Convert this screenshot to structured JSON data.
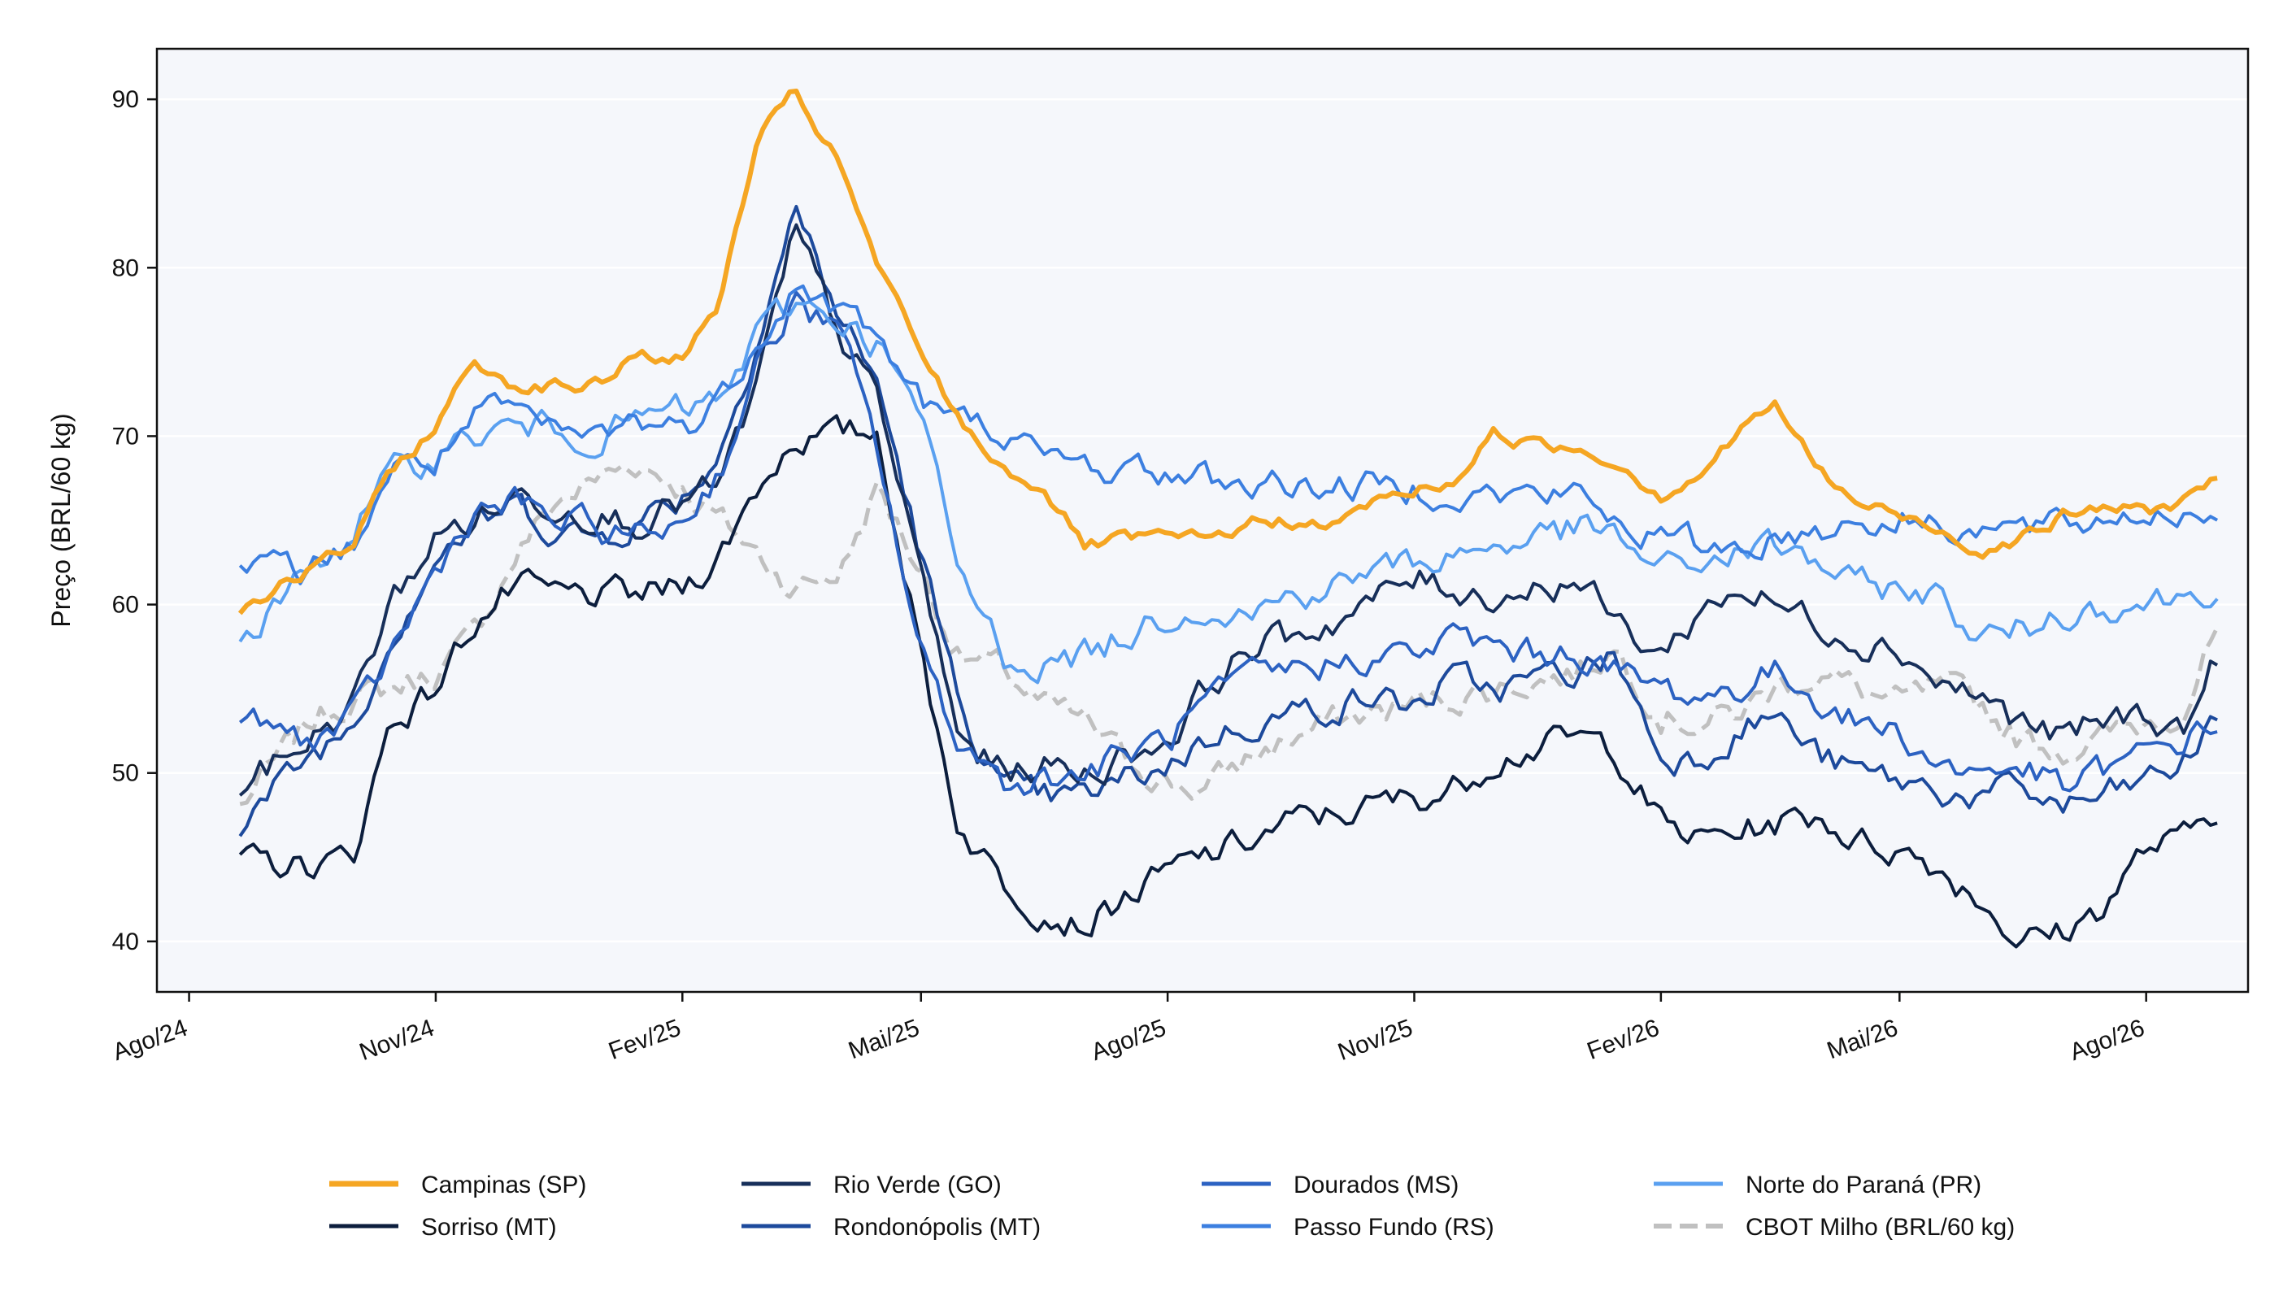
{
  "chart_data": {
    "type": "line",
    "title": "",
    "xlabel": "",
    "ylabel": "Preço (BRL/60 kg)",
    "ylim": [
      37,
      93
    ],
    "xlim": [
      "2024-07-20",
      "2026-09-08"
    ],
    "yticks": [
      40,
      50,
      60,
      70,
      80,
      90
    ],
    "xticks": [
      {
        "label": "Ago/24",
        "date": "2024-08-01"
      },
      {
        "label": "Nov/24",
        "date": "2024-11-01"
      },
      {
        "label": "Fev/25",
        "date": "2025-02-01"
      },
      {
        "label": "Mai/25",
        "date": "2025-05-01"
      },
      {
        "label": "Ago/25",
        "date": "2025-08-01"
      },
      {
        "label": "Nov/25",
        "date": "2025-11-01"
      },
      {
        "label": "Fev/26",
        "date": "2026-02-01"
      },
      {
        "label": "Mai/26",
        "date": "2026-05-01"
      },
      {
        "label": "Ago/26",
        "date": "2026-08-01"
      }
    ],
    "grid": "horizontal",
    "background": "#f5f7fb",
    "legend_position": "bottom-center",
    "x": [
      "2024-08-20",
      "2024-09-15",
      "2024-10-01",
      "2024-10-15",
      "2024-11-01",
      "2024-11-15",
      "2024-12-01",
      "2024-12-15",
      "2025-01-01",
      "2025-01-15",
      "2025-02-01",
      "2025-02-15",
      "2025-03-01",
      "2025-03-15",
      "2025-04-01",
      "2025-04-15",
      "2025-05-01",
      "2025-05-15",
      "2025-06-01",
      "2025-06-15",
      "2025-07-01",
      "2025-07-15",
      "2025-08-01",
      "2025-08-15",
      "2025-09-01",
      "2025-09-15",
      "2025-10-01",
      "2025-10-15",
      "2025-11-01",
      "2025-11-15",
      "2025-12-01",
      "2025-12-15",
      "2026-01-01",
      "2026-01-15",
      "2026-02-01",
      "2026-02-15",
      "2026-03-01",
      "2026-03-15",
      "2026-04-01",
      "2026-04-15",
      "2026-05-01",
      "2026-05-15",
      "2026-06-01",
      "2026-06-15",
      "2026-07-01",
      "2026-07-15",
      "2026-08-01",
      "2026-08-15",
      "2026-08-28"
    ],
    "series": [
      {
        "name": "Campinas (SP)",
        "color": "#f5a623",
        "dash": "solid",
        "width": 6,
        "values": [
          59.8,
          62,
          63.5,
          68,
          70.5,
          74.5,
          73,
          73,
          73,
          75,
          74.5,
          78,
          87.5,
          90.4,
          86,
          80,
          75,
          71,
          68,
          67,
          63.5,
          63.8,
          64,
          63.8,
          64.8,
          65,
          64.5,
          66,
          66.8,
          67.2,
          70.2,
          69.5,
          69.3,
          68.5,
          66.5,
          67.7,
          70,
          72,
          68,
          66,
          65.3,
          64.5,
          63.2,
          64,
          65.2,
          65.8,
          65.5,
          66.2,
          67.8
        ]
      },
      {
        "name": "Rio Verde (GO)",
        "color": "#172f5a",
        "dash": "solid",
        "width": 4,
        "values": [
          49,
          52,
          54,
          60,
          64,
          65,
          66.5,
          66,
          65.5,
          65,
          66,
          67,
          73,
          82,
          76,
          72,
          62,
          52,
          50,
          50.5,
          50,
          51,
          52,
          55,
          57.5,
          58,
          59,
          60,
          61.5,
          61,
          60.5,
          61,
          61.5,
          59,
          57,
          59.5,
          61,
          60,
          59,
          58,
          57.5,
          55.5,
          54.5,
          53,
          52,
          53,
          53.5,
          52.5,
          57
        ]
      },
      {
        "name": "Dourados (MS)",
        "color": "#2c62c2",
        "dash": "solid",
        "width": 4,
        "values": [
          53,
          52,
          53,
          57,
          62,
          65.5,
          66,
          65,
          64.5,
          64,
          65,
          68,
          74,
          78,
          76,
          69,
          57,
          52,
          49.5,
          49.8,
          50,
          51,
          52,
          54,
          55.5,
          56,
          56.5,
          57,
          57,
          58,
          57.5,
          57,
          57.2,
          56,
          55,
          54.5,
          55,
          56,
          54.5,
          53,
          52.5,
          50.5,
          50,
          50.5,
          49,
          50,
          51,
          52,
          53
        ]
      },
      {
        "name": "Norte do Paraná (PR)",
        "color": "#5aa0f0",
        "dash": "solid",
        "width": 4,
        "values": [
          57.5,
          62,
          64.5,
          67.5,
          69,
          70,
          70.5,
          70.5,
          70,
          71,
          71.5,
          72,
          76,
          78,
          77,
          75.5,
          71,
          62,
          57,
          56.5,
          57,
          58,
          59.5,
          60,
          59.5,
          60.5,
          61,
          62,
          62.5,
          63,
          63.5,
          64,
          64.5,
          64,
          62,
          62.5,
          63,
          63.5,
          62.5,
          61,
          61,
          60.5,
          58,
          58.5,
          59.5,
          60,
          60.2,
          60.5,
          61.3
        ]
      },
      {
        "name": "Sorriso (MT)",
        "color": "#0c1e3d",
        "dash": "solid",
        "width": 4,
        "values": [
          44.5,
          44.5,
          45,
          53,
          55,
          59,
          61,
          60.5,
          60.5,
          60.5,
          61,
          63,
          67,
          70,
          70,
          70.3,
          57,
          47,
          43.5,
          42,
          41,
          42.5,
          44,
          45,
          46,
          47,
          47.5,
          48,
          48.5,
          49,
          51,
          51.5,
          52,
          51.5,
          47,
          46,
          46.5,
          47,
          47.5,
          46,
          45.5,
          44.5,
          42.5,
          40,
          40.5,
          42,
          45.5,
          46,
          48
        ]
      },
      {
        "name": "Rondonópolis (MT)",
        "color": "#1d4a9c",
        "dash": "solid",
        "width": 4,
        "values": [
          47,
          51,
          53,
          58,
          63,
          64.5,
          66,
          64.5,
          64,
          65,
          66.5,
          69,
          76,
          83.5,
          77,
          73,
          63,
          54,
          49,
          48.5,
          48.5,
          49.5,
          50.5,
          52,
          53,
          53.5,
          54,
          54.5,
          54,
          55.5,
          55,
          55.5,
          56,
          57,
          51,
          51,
          52.5,
          53.5,
          51,
          50,
          49.5,
          49,
          48.5,
          49,
          48,
          48.5,
          49.5,
          50.5,
          53.5
        ]
      },
      {
        "name": "Passo Fundo (RS)",
        "color": "#3c7fe0",
        "dash": "solid",
        "width": 4,
        "values": [
          62,
          62,
          63.5,
          68,
          68.5,
          71,
          71.5,
          70,
          70,
          71,
          70.5,
          72,
          76,
          79,
          77.5,
          76,
          72,
          70.8,
          70.5,
          68.5,
          68.3,
          68,
          67.8,
          67.5,
          67.2,
          67.2,
          67,
          67,
          67,
          66.8,
          66.5,
          66.5,
          66.5,
          65,
          64,
          63.5,
          63.5,
          64,
          64.5,
          65,
          65,
          65,
          64.5,
          64.5,
          64.5,
          65,
          65.5,
          65.5,
          65.5
        ]
      },
      {
        "name": "CBOT Milho (BRL/60 kg)",
        "color": "#c0c0c0",
        "dash": "dashed",
        "width": 5,
        "values": [
          48,
          53,
          54.5,
          55,
          56,
          58,
          63,
          66,
          67.5,
          68.5,
          67,
          65,
          63,
          61,
          62,
          67,
          62,
          57,
          56,
          54,
          53,
          51,
          49.5,
          49,
          51,
          52,
          53,
          53.5,
          54,
          54.5,
          55,
          55.5,
          56,
          57.5,
          53.5,
          53,
          53.5,
          55,
          56,
          55,
          54,
          55,
          54,
          52,
          51.5,
          52,
          53,
          54,
          58.5
        ]
      }
    ]
  }
}
